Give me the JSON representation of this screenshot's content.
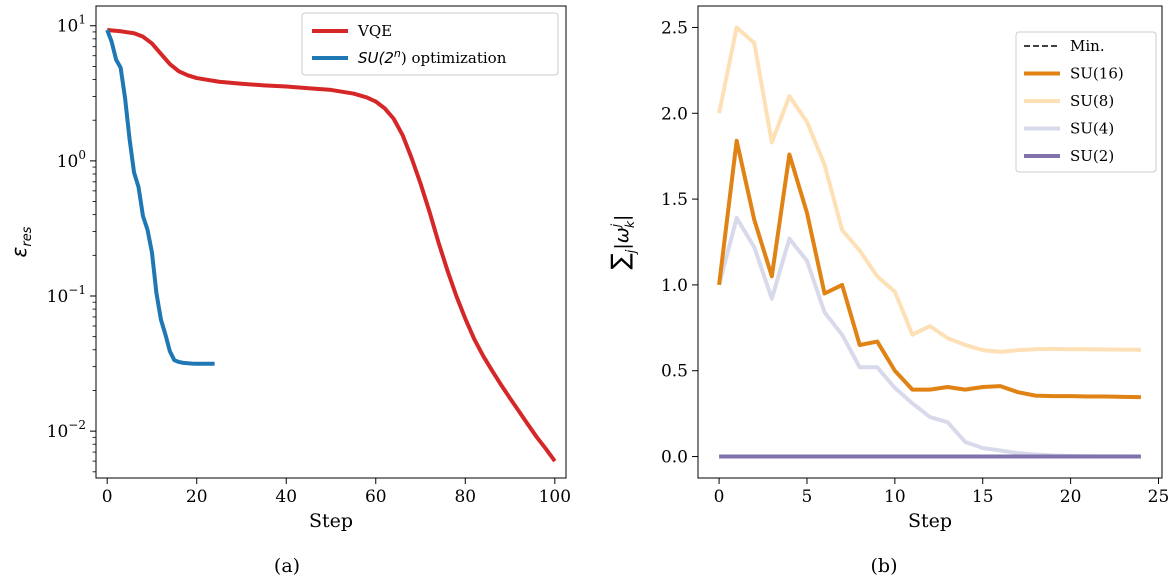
{
  "chart_data": [
    {
      "type": "line",
      "panel_label": "(a)",
      "xlabel": "Step",
      "ylabel_symbol": "ε",
      "ylabel_subscript": "res",
      "yscale": "log",
      "xlim": [
        -2.5,
        102.5
      ],
      "ylim": [
        0.0045,
        14
      ],
      "xticks": [
        0,
        20,
        40,
        60,
        80,
        100
      ],
      "xtick_labels": [
        "0",
        "20",
        "40",
        "60",
        "80",
        "100"
      ],
      "yticks": [
        0.01,
        0.1,
        1,
        10
      ],
      "ytick_bases": [
        "10",
        "10",
        "10",
        "10"
      ],
      "ytick_exponents": [
        "−2",
        "−1",
        "0",
        "1"
      ],
      "grid": false,
      "legend_position": "top-right",
      "series": [
        {
          "name": "VQE",
          "color": "#d62728",
          "x": [
            0,
            3,
            6,
            8,
            10,
            12,
            14,
            16,
            18,
            20,
            25,
            30,
            35,
            40,
            45,
            50,
            55,
            58,
            60,
            62,
            64,
            66,
            68,
            70,
            72,
            74,
            76,
            78,
            80,
            82,
            84,
            86,
            88,
            90,
            92,
            94,
            96,
            98,
            100
          ],
          "y": [
            9.3,
            9.1,
            8.8,
            8.3,
            7.4,
            6.2,
            5.2,
            4.6,
            4.3,
            4.1,
            3.85,
            3.72,
            3.62,
            3.55,
            3.45,
            3.35,
            3.15,
            2.95,
            2.75,
            2.45,
            2.05,
            1.55,
            1.05,
            0.68,
            0.42,
            0.25,
            0.155,
            0.1,
            0.068,
            0.048,
            0.036,
            0.028,
            0.022,
            0.0175,
            0.014,
            0.0112,
            0.009,
            0.0074,
            0.006
          ]
        },
        {
          "name_prefix": "SU(2",
          "name_sup": "n",
          "name_suffix": ") optimization",
          "color": "#1f77b4",
          "x": [
            0,
            1,
            2,
            3,
            4,
            5,
            6,
            7,
            8,
            9,
            10,
            11,
            12,
            13,
            14,
            15,
            16,
            17,
            18,
            19,
            20,
            21,
            22,
            23,
            24
          ],
          "y": [
            9.3,
            7.6,
            5.6,
            4.9,
            2.9,
            1.45,
            0.82,
            0.64,
            0.39,
            0.31,
            0.21,
            0.105,
            0.067,
            0.052,
            0.039,
            0.0335,
            0.0325,
            0.032,
            0.0318,
            0.0316,
            0.0315,
            0.0315,
            0.0315,
            0.0315,
            0.0315
          ]
        }
      ]
    },
    {
      "type": "line",
      "panel_label": "(b)",
      "xlabel": "Step",
      "ylabel_sum": "∑",
      "ylabel_sum_sub": "j",
      "ylabel_body": "|ω",
      "ylabel_body_sup": "j",
      "ylabel_body_sub": "k",
      "ylabel_close": "|",
      "xlim": [
        -1.2,
        25.2
      ],
      "ylim": [
        -0.125,
        2.625
      ],
      "xticks": [
        0,
        5,
        10,
        15,
        20,
        25
      ],
      "xtick_labels": [
        "0",
        "5",
        "10",
        "15",
        "20",
        "25"
      ],
      "yticks": [
        0.0,
        0.5,
        1.0,
        1.5,
        2.0,
        2.5
      ],
      "ytick_labels": [
        "0.0",
        "0.5",
        "1.0",
        "1.5",
        "2.0",
        "2.5"
      ],
      "grid": false,
      "legend_position": "top-right",
      "series": [
        {
          "name": "Min.",
          "color": "#000000",
          "dashed": true,
          "x": [],
          "y": []
        },
        {
          "name": "SU(16)",
          "color": "#e08214",
          "x": [
            0,
            1,
            2,
            3,
            4,
            5,
            6,
            7,
            8,
            9,
            10,
            11,
            12,
            13,
            14,
            15,
            16,
            17,
            18,
            19,
            20,
            21,
            22,
            23,
            24
          ],
          "y": [
            1.0,
            1.84,
            1.38,
            1.05,
            1.76,
            1.42,
            0.95,
            1.0,
            0.65,
            0.67,
            0.5,
            0.39,
            0.39,
            0.405,
            0.39,
            0.405,
            0.41,
            0.375,
            0.355,
            0.352,
            0.352,
            0.35,
            0.35,
            0.348,
            0.346
          ]
        },
        {
          "name": "SU(8)",
          "color": "#fee0b6",
          "x": [
            0,
            1,
            2,
            3,
            4,
            5,
            6,
            7,
            8,
            9,
            10,
            11,
            12,
            13,
            14,
            15,
            16,
            17,
            18,
            19,
            20,
            21,
            22,
            23,
            24
          ],
          "y": [
            2.0,
            2.5,
            2.41,
            1.83,
            2.1,
            1.95,
            1.7,
            1.32,
            1.2,
            1.05,
            0.96,
            0.71,
            0.76,
            0.69,
            0.65,
            0.62,
            0.61,
            0.62,
            0.625,
            0.627,
            0.625,
            0.625,
            0.624,
            0.623,
            0.622
          ]
        },
        {
          "name": "SU(4)",
          "color": "#d8daeb",
          "x": [
            0,
            1,
            2,
            3,
            4,
            5,
            6,
            7,
            8,
            9,
            10,
            11,
            12,
            13,
            14,
            15,
            16,
            17,
            18,
            19,
            20,
            21,
            22,
            23,
            24
          ],
          "y": [
            1.0,
            1.39,
            1.22,
            0.92,
            1.27,
            1.14,
            0.84,
            0.71,
            0.52,
            0.52,
            0.4,
            0.31,
            0.23,
            0.2,
            0.085,
            0.05,
            0.035,
            0.02,
            0.012,
            0.006,
            0.003,
            0.002,
            0.001,
            0.001,
            0.0
          ]
        },
        {
          "name": "SU(2)",
          "color": "#8073ac",
          "x": [
            0,
            24
          ],
          "y": [
            0.0,
            0.0
          ]
        }
      ]
    }
  ]
}
